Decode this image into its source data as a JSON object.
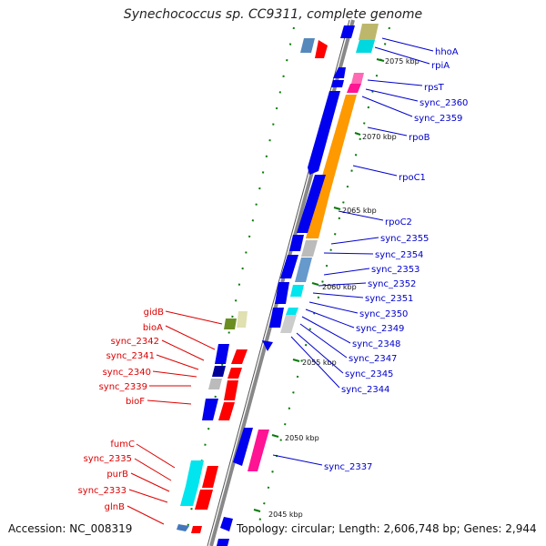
{
  "title": "Synechococcus sp. CC9311, complete genome",
  "footer": {
    "accession": "Accession: NC_008319",
    "summary": "Topology: circular; Length: 2,606,748 bp; Genes: 2,944"
  },
  "kbp_marks": [
    "2075 kbp",
    "2070 kbp",
    "2065 kbp",
    "2060 kbp",
    "2055 kbp",
    "2050 kbp",
    "2045 kbp"
  ],
  "right_genes": [
    "hhoA",
    "rpiA",
    "rpsT",
    "sync_2360",
    "sync_2359",
    "rpoB",
    "rpoC1",
    "rpoC2",
    "sync_2355",
    "sync_2354",
    "sync_2353",
    "sync_2352",
    "sync_2351",
    "sync_2350",
    "sync_2349",
    "sync_2348",
    "sync_2347",
    "sync_2345",
    "sync_2344",
    "sync_2337"
  ],
  "left_genes": [
    "gidB",
    "bioA",
    "sync_2342",
    "sync_2341",
    "sync_2340",
    "sync_2339",
    "bioF",
    "fumC",
    "sync_2335",
    "purB",
    "sync_2333",
    "glnB"
  ],
  "colors": {
    "right_label": "#0000cc",
    "left_label": "#dd0000",
    "backbone": "#888888",
    "tick": "#007700",
    "gene_blue": "#0000ee",
    "gene_orange": "#ff9900",
    "gene_red": "#ff0000",
    "gene_cyan": "#00e5ee",
    "gene_pink": "#ff1493",
    "gene_gray": "#bbbbbb"
  }
}
